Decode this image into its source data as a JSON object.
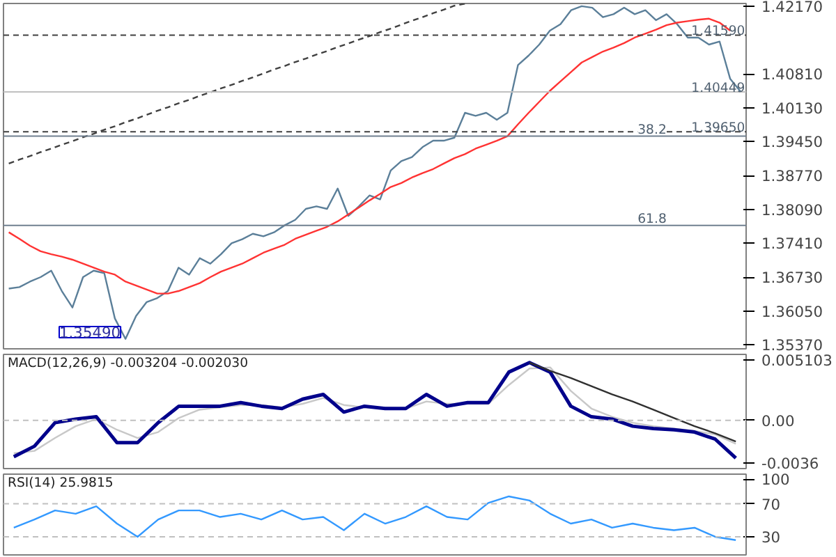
{
  "chart_data": [
    {
      "type": "line",
      "tick_labels": "y",
      "grid": false,
      "categories": [
        null,
        null,
        null,
        null,
        null,
        null,
        null,
        null,
        null,
        null,
        null,
        null,
        null,
        null,
        null,
        null,
        null,
        null,
        null,
        null,
        null,
        null,
        null,
        null,
        null,
        null,
        null,
        null,
        null,
        null,
        null,
        null,
        null,
        null,
        null,
        null,
        null,
        null,
        null,
        null,
        null,
        null,
        null,
        null,
        null,
        null,
        null,
        null,
        null,
        null,
        null,
        null,
        null,
        null,
        null,
        null,
        null,
        null,
        null,
        null,
        null,
        null,
        null,
        null,
        null,
        null,
        null,
        null,
        null,
        null
      ],
      "ylim": [
        1.3529,
        1.42225
      ],
      "yticks": [
        {
          "value": 1.4217,
          "label": "1.42170"
        },
        {
          "value": 1.4081,
          "label": "1.40810"
        },
        {
          "value": 1.4013,
          "label": "1.40130"
        },
        {
          "value": 1.3945,
          "label": "1.39450"
        },
        {
          "value": 1.3877,
          "label": "1.38770"
        },
        {
          "value": 1.3809,
          "label": "1.38090"
        },
        {
          "value": 1.3741,
          "label": "1.37410"
        },
        {
          "value": 1.3673,
          "label": "1.36730"
        },
        {
          "value": 1.3605,
          "label": "1.36050"
        },
        {
          "value": 1.3537,
          "label": "1.35370"
        }
      ],
      "series": [
        {
          "color": "#5b7f99",
          "values": [
            1.365,
            1.3653,
            1.3664,
            1.3673,
            1.3686,
            1.3645,
            1.3612,
            1.3673,
            1.3686,
            1.3681,
            1.359,
            1.3549,
            1.3595,
            1.3623,
            1.3631,
            1.3645,
            1.3692,
            1.3678,
            1.3711,
            1.37,
            1.3719,
            1.3741,
            1.3749,
            1.376,
            1.3755,
            1.3763,
            1.3777,
            1.3788,
            1.381,
            1.3815,
            1.381,
            1.3851,
            1.3796,
            1.3815,
            1.3837,
            1.3829,
            1.3887,
            1.3906,
            1.3914,
            1.3934,
            1.3947,
            1.3947,
            1.3953,
            1.4003,
            1.3997,
            1.4003,
            1.3989,
            1.4003,
            1.4099,
            1.4118,
            1.414,
            1.4168,
            1.4181,
            1.4209,
            1.4217,
            1.4214,
            1.4195,
            1.4201,
            1.4214,
            1.4201,
            1.4209,
            1.4189,
            1.4201,
            1.4181,
            1.4154,
            1.4154,
            1.414,
            1.4146,
            1.4071,
            1.4045
          ]
        },
        {
          "color": "#ff3333",
          "values": [
            1.3763,
            1.375,
            1.3736,
            1.3725,
            1.3719,
            1.3714,
            1.3708,
            1.37,
            1.3692,
            1.3684,
            1.3678,
            1.3664,
            1.3656,
            1.3648,
            1.364,
            1.364,
            1.3645,
            1.3653,
            1.3661,
            1.3673,
            1.3684,
            1.3692,
            1.37,
            1.3711,
            1.3722,
            1.373,
            1.3738,
            1.375,
            1.3758,
            1.3766,
            1.3774,
            1.3785,
            1.3799,
            1.3813,
            1.3827,
            1.384,
            1.3854,
            1.3862,
            1.3873,
            1.3882,
            1.389,
            1.3901,
            1.3912,
            1.392,
            1.3931,
            1.3939,
            1.3947,
            1.3956,
            1.398,
            1.4003,
            1.4025,
            1.4047,
            1.4066,
            1.4085,
            1.4104,
            1.4115,
            1.4126,
            1.4134,
            1.4143,
            1.4154,
            1.4162,
            1.417,
            1.4179,
            1.4184,
            1.4187,
            1.419,
            1.4192,
            1.4184,
            1.4168,
            null
          ]
        },
        {
          "color": "#404040",
          "line_style": "dashed",
          "values": [
            1.3901,
            1.3909,
            1.3916,
            1.3924,
            1.3931,
            1.3939,
            1.3946,
            1.3954,
            1.3961,
            1.3969,
            1.3976,
            1.3984,
            1.3991,
            1.3999,
            1.4007,
            1.4014,
            1.4022,
            1.4029,
            1.4037,
            1.4044,
            1.4052,
            1.4059,
            1.4067,
            1.4074,
            1.4082,
            1.409,
            1.4097,
            1.4105,
            1.4112,
            1.412,
            1.4127,
            1.4135,
            1.4142,
            1.415,
            1.4157,
            1.4165,
            1.4172,
            1.418,
            1.4188,
            1.4195,
            1.4203,
            1.421,
            1.4218,
            1.4222,
            null,
            null,
            null,
            null,
            null,
            null,
            null,
            null,
            null,
            null,
            null,
            null,
            null,
            null,
            null,
            null,
            null,
            null,
            null,
            null,
            null,
            null,
            null,
            null,
            null,
            null
          ]
        }
      ],
      "ref_lines": [
        {
          "axis": "y",
          "value": 1.4159,
          "label": "1.41590",
          "color": "#404040",
          "line_style": "dashed"
        },
        {
          "axis": "y",
          "value": 1.40449,
          "label": "1.40449",
          "color": "#c0c0c0",
          "line_style": "solid"
        },
        {
          "axis": "y",
          "value": 1.3965,
          "label": "1.39650",
          "color": "#404040",
          "line_style": "dashed"
        },
        {
          "axis": "y",
          "value": 1.3956,
          "color": "#708090",
          "line_style": "solid"
        },
        {
          "axis": "y",
          "value": 1.3777,
          "color": "#708090",
          "line_style": "solid"
        }
      ],
      "annotations": [
        "1.35490",
        {
          "text": "38.2",
          "y": 1.3956
        },
        {
          "text": "61.8",
          "y": 1.3777
        }
      ]
    },
    {
      "type": "line",
      "tick_labels": "y",
      "grid": false,
      "title": "MACD(12,26,9) -0.003204 -0.002030",
      "categories": [
        null,
        null,
        null,
        null,
        null,
        null,
        null,
        null,
        null,
        null,
        null,
        null,
        null,
        null,
        null,
        null,
        null,
        null,
        null,
        null,
        null,
        null,
        null,
        null,
        null,
        null,
        null,
        null,
        null,
        null,
        null,
        null,
        null,
        null,
        null,
        null
      ],
      "ylim": [
        -0.0041,
        0.0056
      ],
      "yticks": [
        {
          "value": 0.005103,
          "label": "0.005103"
        },
        {
          "value": 0,
          "label": "0.00"
        },
        {
          "value": -0.0036,
          "label": "-0.0036"
        }
      ],
      "series": [
        {
          "color": "#c8c8c8",
          "values": [
            -0.0028,
            -0.0026,
            -0.0015,
            -0.0005,
            0.0001,
            -0.0008,
            -0.0015,
            -0.001,
            0.0002,
            0.0009,
            0.0011,
            0.0013,
            0.0013,
            0.0011,
            0.0014,
            0.0019,
            0.0013,
            0.0011,
            0.0011,
            0.001,
            0.0016,
            0.0014,
            0.0014,
            0.0014,
            0.003,
            0.0044,
            0.0045,
            0.0025,
            0.001,
            0.0003,
            -0.0002,
            -0.0005,
            -0.0007,
            -0.0009,
            -0.0012,
            -0.002
          ]
        },
        {
          "color": "#00008b",
          "values": [
            -0.0031,
            -0.0022,
            -0.0002,
            0.0001,
            0.0003,
            -0.0019,
            -0.0019,
            -0.0002,
            0.0012,
            0.0012,
            0.0012,
            0.0015,
            0.0012,
            0.001,
            0.0018,
            0.0022,
            0.0007,
            0.0012,
            0.001,
            0.001,
            0.0022,
            0.0012,
            0.0015,
            0.0015,
            0.0041,
            0.0049,
            0.0041,
            0.0012,
            0.0003,
            0.0001,
            -0.0005,
            -0.0007,
            -0.0008,
            -0.001,
            -0.0016,
            -0.0032
          ]
        },
        {
          "color": "#303030",
          "values": [
            null,
            null,
            null,
            null,
            null,
            null,
            null,
            null,
            null,
            null,
            null,
            null,
            null,
            null,
            null,
            null,
            null,
            null,
            null,
            null,
            null,
            null,
            null,
            null,
            null,
            0.0049,
            0.0042,
            0.0036,
            0.0029,
            0.0022,
            0.0016,
            0.0009,
            0.0002,
            -0.0005,
            -0.0011,
            -0.0018
          ]
        }
      ],
      "ref_lines": [
        {
          "axis": "y",
          "value": 0,
          "color": "#c0c0c0",
          "line_style": "dashed"
        }
      ]
    },
    {
      "type": "line",
      "tick_labels": "y",
      "grid": false,
      "title": "RSI(14) 25.9815",
      "categories": [
        null,
        null,
        null,
        null,
        null,
        null,
        null,
        null,
        null,
        null,
        null,
        null,
        null,
        null,
        null,
        null,
        null,
        null,
        null,
        null,
        null,
        null,
        null,
        null,
        null,
        null,
        null,
        null,
        null,
        null,
        null,
        null,
        null,
        null,
        null,
        null
      ],
      "ylim": [
        8,
        106
      ],
      "yticks": [
        100,
        70,
        30
      ],
      "series": [
        {
          "color": "#3399ff",
          "values": [
            41,
            51,
            62,
            58,
            67,
            46,
            30,
            51,
            62,
            62,
            54,
            58,
            51,
            62,
            51,
            54,
            38,
            58,
            46,
            54,
            67,
            54,
            51,
            71,
            79,
            74,
            58,
            46,
            51,
            41,
            46,
            41,
            38,
            41,
            30,
            26
          ]
        }
      ],
      "ref_lines": [
        {
          "axis": "y",
          "value": 70,
          "color": "#c0c0c0",
          "line_style": "dashed"
        },
        {
          "axis": "y",
          "value": 30,
          "color": "#c0c0c0",
          "line_style": "dashed"
        }
      ]
    }
  ]
}
